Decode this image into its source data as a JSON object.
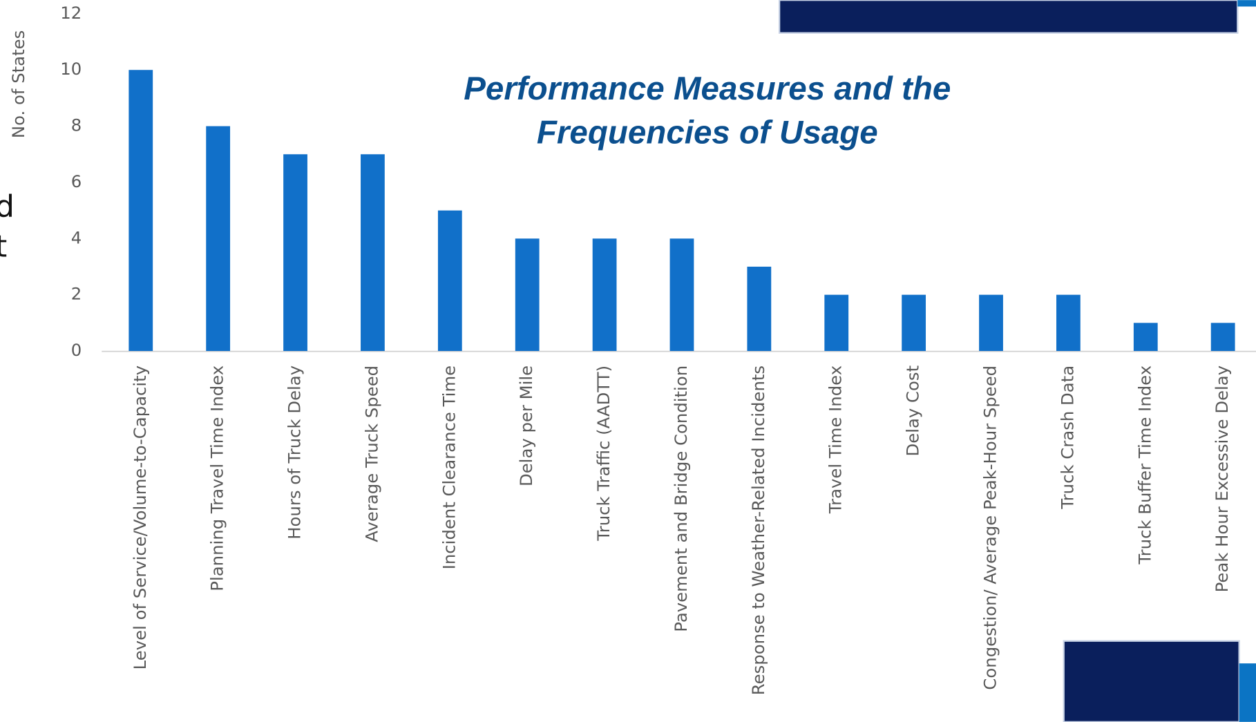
{
  "chart_data": {
    "type": "bar",
    "title": [
      "Performance Measures and the",
      "Frequencies of Usage"
    ],
    "y_label": "No. of States",
    "categories": [
      "Level of Service/Volume-to-Capacity",
      "Planning Travel Time Index",
      "Hours of Truck Delay",
      "Average Truck Speed",
      "Incident Clearance Time",
      "Delay per Mile",
      "Truck Traffic (AADTT)",
      "Pavement and Bridge Condition",
      "Response to Weather-Related Incidents",
      "Travel Time Index",
      "Delay Cost",
      "Congestion/ Average Peak-Hour Speed",
      "Truck Crash Data",
      "Truck Buffer Time Index",
      "Peak Hour Excessive Delay"
    ],
    "values": [
      10,
      8,
      7,
      7,
      5,
      4,
      4,
      4,
      3,
      2,
      2,
      2,
      2,
      1,
      1
    ],
    "color": "#1170c9",
    "ylim": [
      0,
      12
    ],
    "yticks": [
      0,
      2,
      4,
      6,
      8,
      10,
      12
    ],
    "grid": false
  },
  "slide_fragments": [
    "d",
    "t"
  ]
}
